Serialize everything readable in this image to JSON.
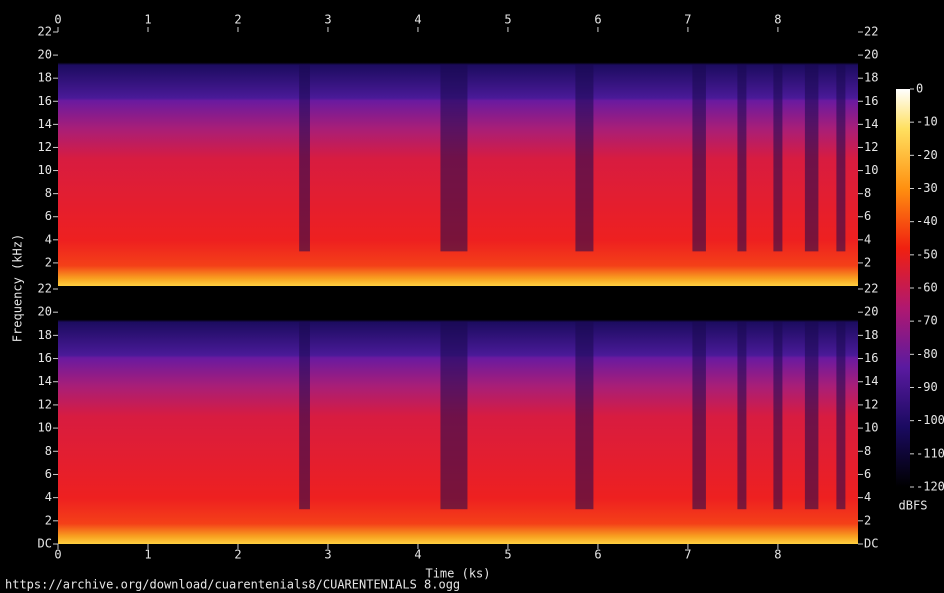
{
  "chart_data": {
    "type": "spectrogram",
    "xlabel": "Time (ks)",
    "ylabel": "Frequency (kHz)",
    "xlim": [
      0,
      8.89
    ],
    "xticks": [
      0,
      1,
      2,
      3,
      4,
      5,
      6,
      7,
      8
    ],
    "panels": [
      {
        "ylim": [
          0,
          22
        ],
        "yticks": [
          2,
          4,
          6,
          8,
          10,
          12,
          14,
          16,
          18,
          20,
          22
        ]
      },
      {
        "ylim": [
          0,
          22
        ],
        "yticks": [
          {
            "value": 0,
            "label": "DC"
          },
          2,
          4,
          6,
          8,
          10,
          12,
          14,
          16,
          18,
          20,
          22
        ]
      }
    ],
    "colorbar": {
      "label": "dBFS",
      "lim": [
        -120,
        0
      ],
      "ticks": [
        0,
        -10,
        -20,
        -30,
        -40,
        -50,
        -60,
        -70,
        -80,
        -90,
        -100,
        -110,
        -120
      ]
    },
    "source": "https://archive.org/download/cuarentenials8/CUARENTENIALS 8.ogg"
  }
}
